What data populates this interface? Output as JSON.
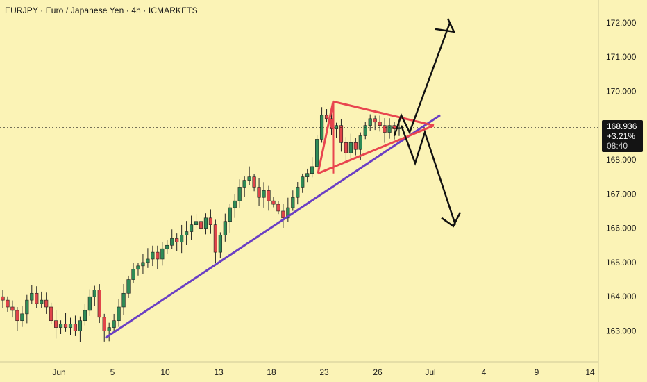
{
  "header": {
    "title": "EURJPY · Euro / Japanese Yen · 4h · ICMARKETS"
  },
  "price_label": {
    "price": "168.936",
    "change": "+3.21%",
    "timer": "08:40"
  },
  "colors": {
    "background": "#fbf3b6",
    "up": "#2e8b57",
    "down": "#e0454a",
    "trendline": "#6a3fc4",
    "triangle": "#e8454f",
    "arrows": "#111111"
  },
  "chart_data": {
    "type": "candlestick",
    "symbol": "EURJPY",
    "timeframe": "4h",
    "y_ticks": [
      "163.000",
      "164.000",
      "165.000",
      "166.000",
      "167.000",
      "168.000",
      "169.000",
      "170.000",
      "171.000",
      "172.000"
    ],
    "x_ticks": [
      "Jun",
      "5",
      "10",
      "13",
      "18",
      "23",
      "26",
      "Jul",
      "4",
      "9",
      "14"
    ],
    "ylim": [
      162.2,
      172.6
    ],
    "last_price": 168.936,
    "close_series": [
      163.9,
      163.7,
      163.6,
      163.3,
      163.5,
      163.9,
      164.1,
      163.8,
      163.9,
      163.7,
      163.3,
      163.1,
      163.2,
      163.1,
      163.2,
      163.0,
      163.3,
      163.6,
      164.0,
      164.2,
      163.4,
      163.0,
      163.1,
      163.3,
      163.7,
      164.1,
      164.5,
      164.8,
      164.9,
      165.0,
      165.1,
      165.3,
      165.1,
      165.4,
      165.5,
      165.7,
      165.6,
      165.8,
      165.9,
      166.1,
      166.2,
      166.0,
      166.3,
      166.1,
      165.3,
      165.8,
      166.2,
      166.6,
      166.8,
      167.2,
      167.4,
      167.5,
      167.2,
      166.9,
      167.1,
      166.8,
      166.7,
      166.5,
      166.3,
      166.6,
      166.9,
      167.2,
      167.5,
      167.6,
      167.8,
      168.6,
      169.3,
      169.2,
      168.9,
      169.0,
      168.5,
      168.2,
      168.5,
      168.3,
      168.7,
      169.0,
      169.2,
      169.1,
      169.0,
      168.8,
      169.0,
      168.9,
      168.936
    ],
    "annotations": {
      "rising_trendline": {
        "from": {
          "date": "Jun 5",
          "price": 162.8
        },
        "to": {
          "date": "Jun 30",
          "price": 169.3
        }
      },
      "symmetrical_triangle": {
        "apex_price": 169.0,
        "upper_start_price": 169.7,
        "lower_start_price": 167.6
      },
      "scenario_up_target": 172.0,
      "scenario_down_target": 166.1
    }
  }
}
